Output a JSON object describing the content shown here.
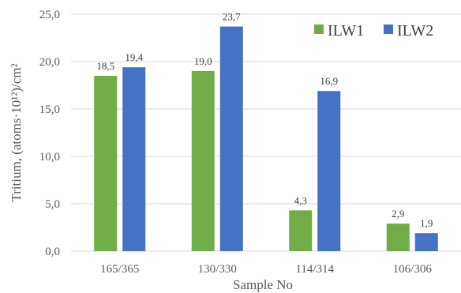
{
  "chart_data": {
    "type": "bar",
    "title": "",
    "xlabel": "Sample No",
    "ylabel": "Tritium, (atoms·10¹²)/cm²",
    "categories": [
      "165/365",
      "130/330",
      "114/314",
      "106/306"
    ],
    "series": [
      {
        "name": "ILW1",
        "color": "#70ad47",
        "values": [
          18.5,
          19.0,
          4.3,
          2.9
        ],
        "labels": [
          "18,5",
          "19,0",
          "4,3",
          "2,9"
        ]
      },
      {
        "name": "ILW2",
        "color": "#4472c4",
        "values": [
          19.4,
          23.7,
          16.9,
          1.9
        ],
        "labels": [
          "19,4",
          "23,7",
          "16,9",
          "1,9"
        ]
      }
    ],
    "ylim": [
      0,
      25
    ],
    "yticks": [
      0,
      5,
      10,
      15,
      20,
      25
    ],
    "ytick_labels": [
      "0,0",
      "5,0",
      "10,0",
      "15,0",
      "20,0",
      "25,0"
    ],
    "grid": true,
    "legend_position": "top-right"
  }
}
